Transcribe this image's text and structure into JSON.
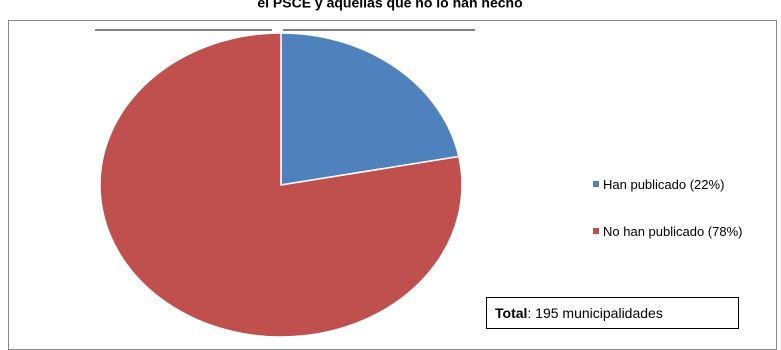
{
  "chart_data": {
    "type": "pie",
    "title": "el PSCE y aquellas que no lo han hecho",
    "series": [
      {
        "name": "Han publicado (22%)",
        "color": "#4f81bd",
        "values": [
          22
        ]
      },
      {
        "name": "No han publicado (78%)",
        "color": "#c0504d",
        "values": [
          78
        ]
      }
    ],
    "legend": "right",
    "annotation": {
      "label": "Total",
      "text": ": 195 municipalidades"
    }
  }
}
